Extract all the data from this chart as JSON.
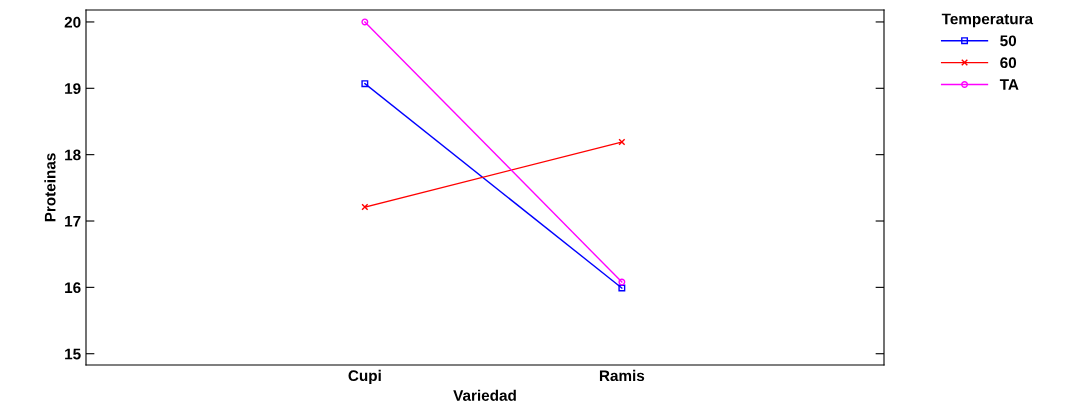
{
  "chart_data": {
    "type": "line",
    "xlabel": "Variedad",
    "ylabel": "Proteinas",
    "legend_title": "Temperatura",
    "categories": [
      "Cupi",
      "Ramis"
    ],
    "series": [
      {
        "name": "50",
        "color": "#0000ff",
        "marker": "square",
        "values": [
          19.07,
          15.99
        ]
      },
      {
        "name": "60",
        "color": "#ff0000",
        "marker": "cross",
        "values": [
          17.21,
          18.19
        ]
      },
      {
        "name": "TA",
        "color": "#ff00ff",
        "marker": "circle",
        "values": [
          20.0,
          16.08
        ]
      }
    ],
    "ylim": [
      14.83,
      20.18
    ],
    "yticks": [
      15,
      16,
      17,
      18,
      19,
      20
    ],
    "grid": false,
    "legend": "top right"
  }
}
